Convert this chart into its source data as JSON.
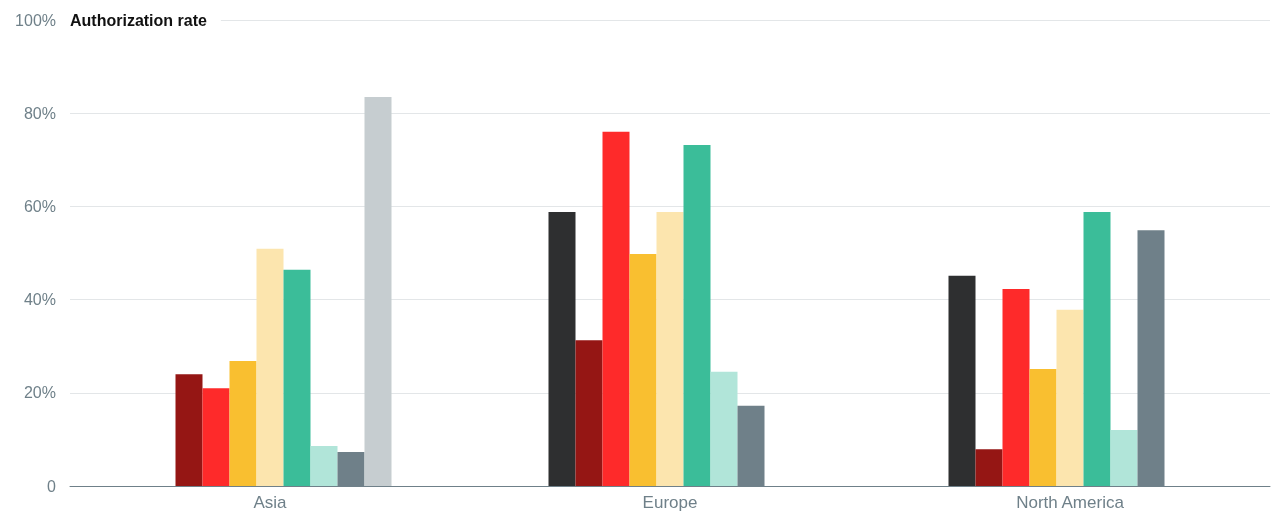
{
  "chart_data": {
    "type": "bar",
    "ylabel": "Authorization rate",
    "categories": [
      "Asia",
      "Europe",
      "North America"
    ],
    "series": [
      {
        "color": "#2e2f30",
        "values": [
          null,
          58.8,
          45.1
        ]
      },
      {
        "color": "#951614",
        "values": [
          24.0,
          31.3,
          7.9
        ]
      },
      {
        "color": "#fe2a2a",
        "values": [
          21.0,
          76.0,
          42.3
        ]
      },
      {
        "color": "#f9bf30",
        "values": [
          26.8,
          49.8,
          25.1
        ]
      },
      {
        "color": "#fce5ae",
        "values": [
          50.9,
          58.8,
          37.8
        ]
      },
      {
        "color": "#3bbd99",
        "values": [
          46.4,
          73.2,
          58.8
        ]
      },
      {
        "color": "#b1e5d9",
        "values": [
          8.6,
          24.5,
          12.0
        ]
      },
      {
        "color": "#6f8089",
        "values": [
          7.3,
          17.2,
          54.9
        ]
      },
      {
        "color": "#c6cdd0",
        "values": [
          83.5,
          null,
          null
        ]
      }
    ],
    "ylim": [
      0,
      100
    ],
    "yticks": [
      0,
      {
        "value": 20,
        "label": "20%"
      },
      {
        "value": 40,
        "label": "40%"
      },
      {
        "value": 60,
        "label": "60%"
      },
      {
        "value": 80,
        "label": "80%"
      },
      {
        "value": 100,
        "label": "100%"
      }
    ],
    "grid": "y"
  }
}
